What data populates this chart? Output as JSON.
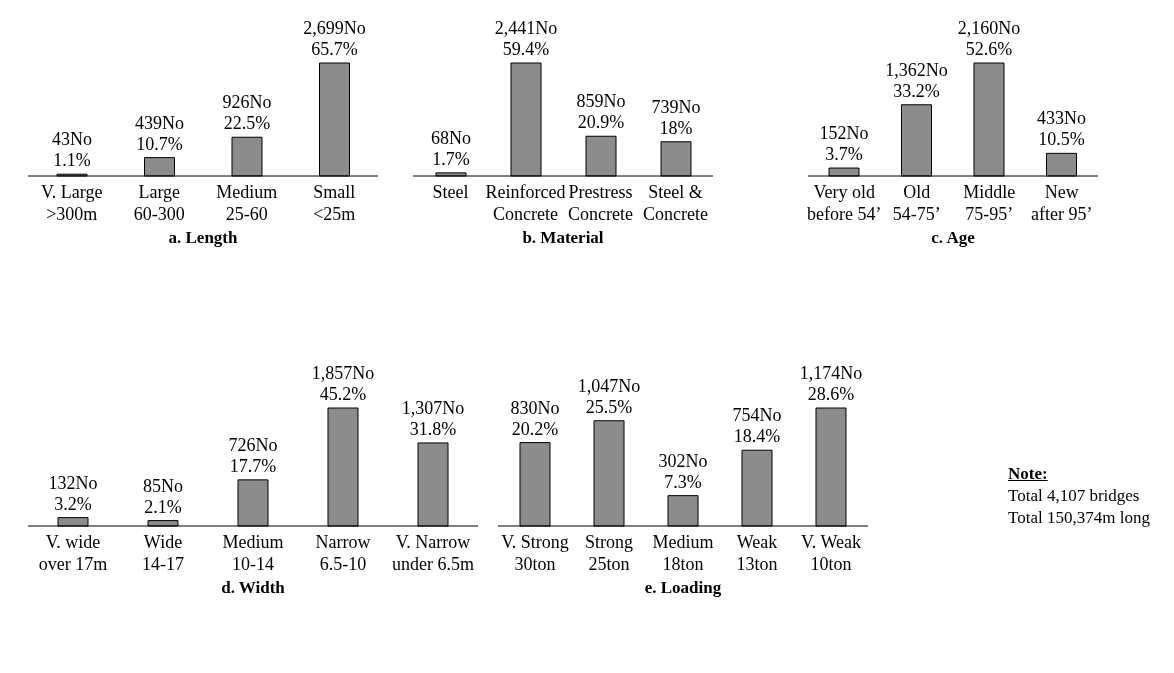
{
  "chart_data": [
    {
      "type": "bar",
      "title": "a. Length",
      "categories": [
        "V. Large\n>300m",
        "Large\n60-300",
        "Medium\n25-60",
        "Small\n<25m"
      ],
      "values": [
        43,
        439,
        926,
        2699
      ],
      "color": "#8c8c8c",
      "value_labels": [
        "43No\n1.1%",
        "439No\n10.7%",
        "926No\n22.5%",
        "2,699No\n65.7%"
      ]
    },
    {
      "type": "bar",
      "title": "b. Material",
      "categories": [
        "Steel",
        "Reinforced\nConcrete",
        "Prestress\nConcrete",
        "Steel &\nConcrete"
      ],
      "values": [
        68,
        2441,
        859,
        739
      ],
      "color": "#8c8c8c",
      "value_labels": [
        "68No\n1.7%",
        "2,441No\n59.4%",
        "859No\n20.9%",
        "739No\n18%"
      ]
    },
    {
      "type": "bar",
      "title": "c. Age",
      "categories": [
        "Very old\nbefore 54’",
        "Old\n54-75’",
        "Middle\n75-95’",
        "New\nafter 95’"
      ],
      "values": [
        152,
        1362,
        2160,
        433
      ],
      "color": "#8c8c8c",
      "value_labels": [
        "152No\n3.7%",
        "1,362No\n33.2%",
        "2,160No\n52.6%",
        "433No\n10.5%"
      ]
    },
    {
      "type": "bar",
      "title": "d. Width",
      "categories": [
        "V. wide\nover 17m",
        "Wide\n14-17",
        "Medium\n10-14",
        "Narrow\n6.5-10",
        "V. Narrow\nunder 6.5m"
      ],
      "values": [
        132,
        85,
        726,
        1857,
        1307
      ],
      "color": "#8c8c8c",
      "value_labels": [
        "132No\n3.2%",
        "85No\n2.1%",
        "726No\n17.7%",
        "1,857No\n45.2%",
        "1,307No\n31.8%"
      ]
    },
    {
      "type": "bar",
      "title": "e. Loading",
      "categories": [
        "V. Strong\n30ton",
        "Strong\n25ton",
        "Medium\n18ton",
        "Weak\n13ton",
        "V. Weak\n10ton"
      ],
      "values": [
        830,
        1047,
        302,
        754,
        1174
      ],
      "color": "#8c8c8c",
      "value_labels": [
        "830No\n20.2%",
        "1,047No\n25.5%",
        "302No\n7.3%",
        "754No\n18.4%",
        "1,174No\n28.6%"
      ]
    },
    {
      "type": "other",
      "title": "Note:",
      "annotations": [
        "Total 4,107 bridges",
        "Total 150,374m long"
      ]
    }
  ]
}
